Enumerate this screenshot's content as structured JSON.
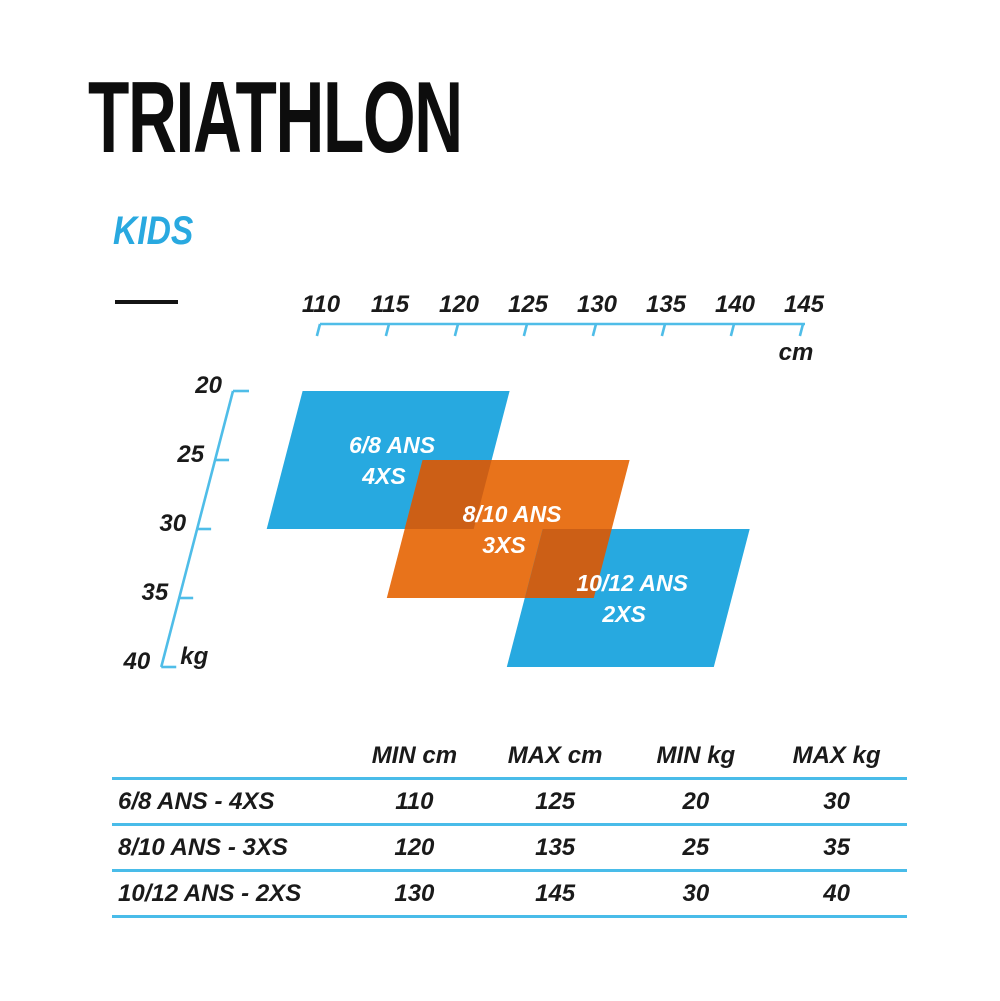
{
  "header": {
    "title": "TRIATHLON",
    "subtitle": "KIDS"
  },
  "chart_data": {
    "type": "area",
    "subtype": "oblique-parallelogram-size-regions",
    "x_axis": {
      "unit": "cm",
      "ticks": [
        110,
        115,
        120,
        125,
        130,
        135,
        140,
        145
      ],
      "min": 110,
      "max": 145
    },
    "y_axis": {
      "unit": "kg",
      "ticks": [
        20,
        25,
        30,
        35,
        40
      ],
      "min": 20,
      "max": 40
    },
    "regions": [
      {
        "name": "6/8 ANS",
        "size": "4XS",
        "cm_min": 110,
        "cm_max": 125,
        "kg_min": 20,
        "kg_max": 30,
        "color_key": "blue"
      },
      {
        "name": "8/10 ANS",
        "size": "3XS",
        "cm_min": 120,
        "cm_max": 135,
        "kg_min": 25,
        "kg_max": 35,
        "color_key": "orange"
      },
      {
        "name": "10/12 ANS",
        "size": "2XS",
        "cm_min": 130,
        "cm_max": 145,
        "kg_min": 30,
        "kg_max": 40,
        "color_key": "blue"
      }
    ],
    "colors": {
      "blue": "#27a9e0",
      "orange": "#e8731b",
      "overlap": "#cc5f16",
      "axis": "#4fbde8",
      "region_text": "#ffffff",
      "tick_text": "#1a1a1a"
    }
  },
  "table": {
    "headers": [
      "MIN cm",
      "MAX cm",
      "MIN kg",
      "MAX kg"
    ],
    "rows": [
      {
        "label": "6/8 ANS - 4XS",
        "values": [
          "110",
          "125",
          "20",
          "30"
        ]
      },
      {
        "label": "8/10 ANS - 3XS",
        "values": [
          "120",
          "135",
          "25",
          "35"
        ]
      },
      {
        "label": "10/12 ANS - 2XS",
        "values": [
          "130",
          "145",
          "30",
          "40"
        ]
      }
    ]
  }
}
